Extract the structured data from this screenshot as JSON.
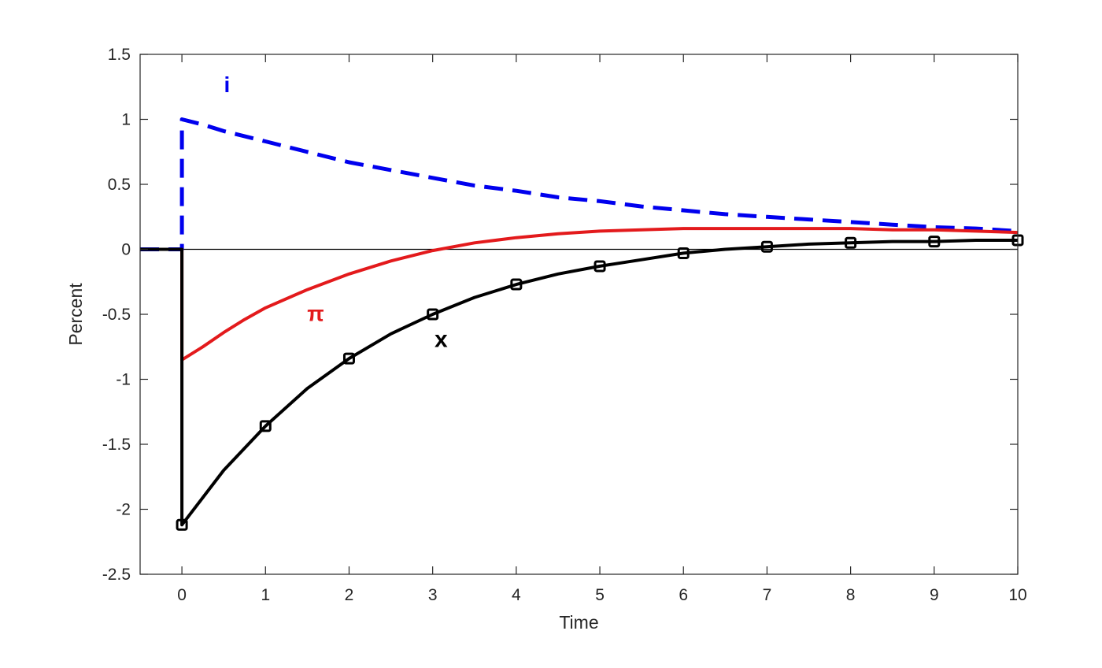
{
  "chart_data": {
    "type": "line",
    "xlabel": "Time",
    "ylabel": "Percent",
    "xlim": [
      -0.5,
      10
    ],
    "ylim": [
      -2.5,
      1.5
    ],
    "xticks": [
      "0",
      "1",
      "2",
      "3",
      "4",
      "5",
      "6",
      "7",
      "8",
      "9",
      "10"
    ],
    "yticks": [
      "1.5",
      "1",
      "0.5",
      "0",
      "-0.5",
      "-1",
      "-1.5",
      "-2",
      "-2.5"
    ],
    "grid": false,
    "zero_line": true,
    "series": [
      {
        "name": "i",
        "color": "#0000ee",
        "style": "dashed",
        "x": [
          -0.5,
          0,
          0,
          0.25,
          0.5,
          1,
          1.5,
          2,
          2.5,
          3,
          3.5,
          4,
          4.5,
          5,
          5.5,
          6,
          6.5,
          7,
          7.5,
          8,
          8.5,
          9,
          9.5,
          10
        ],
        "y": [
          0,
          0,
          1.0,
          0.96,
          0.91,
          0.83,
          0.75,
          0.67,
          0.61,
          0.55,
          0.49,
          0.45,
          0.4,
          0.37,
          0.33,
          0.3,
          0.27,
          0.25,
          0.23,
          0.21,
          0.19,
          0.17,
          0.16,
          0.14
        ]
      },
      {
        "name": "π",
        "color": "#e31a1c",
        "style": "solid",
        "x": [
          -0.5,
          0,
          0,
          0.25,
          0.5,
          0.75,
          1,
          1.5,
          2,
          2.5,
          3,
          3.5,
          4,
          4.5,
          5,
          5.5,
          6,
          6.5,
          7,
          7.5,
          8,
          8.5,
          9,
          9.5,
          10
        ],
        "y": [
          0,
          0,
          -0.85,
          -0.75,
          -0.64,
          -0.54,
          -0.45,
          -0.31,
          -0.19,
          -0.09,
          -0.01,
          0.05,
          0.09,
          0.12,
          0.14,
          0.15,
          0.16,
          0.16,
          0.16,
          0.16,
          0.16,
          0.15,
          0.15,
          0.14,
          0.13
        ]
      },
      {
        "name": "x",
        "color": "#000000",
        "style": "solid",
        "marker": "square",
        "x": [
          -0.5,
          0,
          0,
          0.5,
          1,
          1.5,
          2,
          2.5,
          3,
          3.5,
          4,
          4.5,
          5,
          5.5,
          6,
          6.5,
          7,
          7.5,
          8,
          8.5,
          9,
          9.5,
          10
        ],
        "y": [
          0,
          0,
          -2.12,
          -1.7,
          -1.36,
          -1.07,
          -0.84,
          -0.65,
          -0.5,
          -0.37,
          -0.27,
          -0.19,
          -0.13,
          -0.08,
          -0.03,
          0,
          0.02,
          0.04,
          0.05,
          0.06,
          0.06,
          0.07,
          0.07
        ],
        "marker_x": [
          0,
          1,
          2,
          3,
          4,
          5,
          6,
          7,
          8,
          9,
          10
        ],
        "marker_y": [
          -2.12,
          -1.36,
          -0.84,
          -0.5,
          -0.27,
          -0.13,
          -0.03,
          0.02,
          0.05,
          0.06,
          0.07
        ]
      }
    ],
    "annotations": [
      {
        "text": "i",
        "x": 0.54,
        "y": 1.21,
        "color": "#0000ee"
      },
      {
        "text": "π",
        "x": 1.6,
        "y": -0.55,
        "color": "#e31a1c"
      },
      {
        "text": "x",
        "x": 3.1,
        "y": -0.75,
        "color": "#000000"
      }
    ]
  }
}
